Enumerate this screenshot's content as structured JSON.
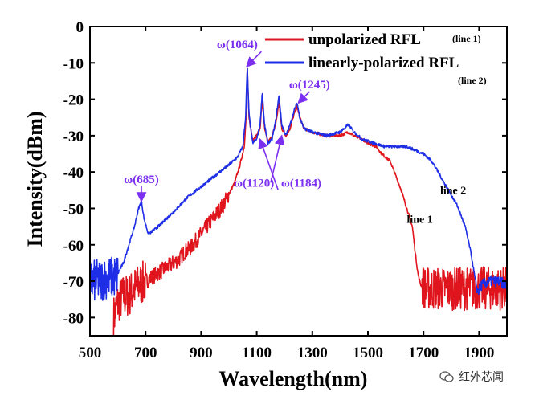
{
  "chart_data": {
    "type": "line",
    "xlabel": "Wavelength(nm)",
    "ylabel": "Intensity(dBm)",
    "xlim": [
      500,
      2000
    ],
    "ylim": [
      -85,
      0
    ],
    "xticks": [
      "500",
      "700",
      "900",
      "1100",
      "1300",
      "1500",
      "1700",
      "1900"
    ],
    "yticks": [
      "0",
      "-10",
      "-20",
      "-30",
      "-40",
      "-50",
      "-60",
      "-70",
      "-80"
    ],
    "legend_position": "top-right",
    "series": [
      {
        "name": "unpolarized RFL",
        "tag": "(line 1)",
        "color": "#e0141c",
        "points": [
          [
            585,
            -80
          ],
          [
            600,
            -76
          ],
          [
            620,
            -74
          ],
          [
            640,
            -74
          ],
          [
            660,
            -72
          ],
          [
            680,
            -71
          ],
          [
            700,
            -70
          ],
          [
            720,
            -69
          ],
          [
            740,
            -68
          ],
          [
            760,
            -67
          ],
          [
            780,
            -66
          ],
          [
            800,
            -65
          ],
          [
            820,
            -64
          ],
          [
            840,
            -62
          ],
          [
            860,
            -61
          ],
          [
            880,
            -59
          ],
          [
            900,
            -57
          ],
          [
            920,
            -55
          ],
          [
            940,
            -53
          ],
          [
            960,
            -51
          ],
          [
            980,
            -49
          ],
          [
            1000,
            -46
          ],
          [
            1020,
            -43
          ],
          [
            1040,
            -38
          ],
          [
            1055,
            -33
          ],
          [
            1062,
            -25
          ],
          [
            1066,
            -11
          ],
          [
            1072,
            -25
          ],
          [
            1085,
            -31
          ],
          [
            1100,
            -30
          ],
          [
            1112,
            -28
          ],
          [
            1120,
            -20
          ],
          [
            1128,
            -28
          ],
          [
            1140,
            -32
          ],
          [
            1155,
            -30
          ],
          [
            1168,
            -27
          ],
          [
            1180,
            -21
          ],
          [
            1190,
            -28
          ],
          [
            1205,
            -30
          ],
          [
            1220,
            -28
          ],
          [
            1235,
            -24
          ],
          [
            1245,
            -22
          ],
          [
            1255,
            -25
          ],
          [
            1270,
            -28
          ],
          [
            1300,
            -29
          ],
          [
            1350,
            -30
          ],
          [
            1400,
            -30
          ],
          [
            1430,
            -29
          ],
          [
            1450,
            -30
          ],
          [
            1480,
            -31
          ],
          [
            1500,
            -32
          ],
          [
            1530,
            -33
          ],
          [
            1550,
            -35
          ],
          [
            1580,
            -37
          ],
          [
            1600,
            -41
          ],
          [
            1620,
            -45
          ],
          [
            1640,
            -50
          ],
          [
            1660,
            -55
          ],
          [
            1670,
            -62
          ],
          [
            1680,
            -68
          ],
          [
            1690,
            -71
          ],
          [
            1710,
            -72
          ],
          [
            1760,
            -72
          ],
          [
            1820,
            -72
          ],
          [
            1880,
            -72
          ],
          [
            1950,
            -72
          ],
          [
            2000,
            -72
          ]
        ]
      },
      {
        "name": "linearly-polarized RFL",
        "tag": "(line 2)",
        "color": "#1e2ee6",
        "points": [
          [
            500,
            -70
          ],
          [
            530,
            -70
          ],
          [
            560,
            -69
          ],
          [
            585,
            -69
          ],
          [
            600,
            -68
          ],
          [
            620,
            -65
          ],
          [
            640,
            -60
          ],
          [
            660,
            -55
          ],
          [
            675,
            -50
          ],
          [
            685,
            -48
          ],
          [
            695,
            -53
          ],
          [
            710,
            -57
          ],
          [
            730,
            -56
          ],
          [
            760,
            -54
          ],
          [
            800,
            -51
          ],
          [
            850,
            -47
          ],
          [
            900,
            -44
          ],
          [
            950,
            -41
          ],
          [
            1000,
            -38
          ],
          [
            1030,
            -36
          ],
          [
            1050,
            -33
          ],
          [
            1060,
            -25
          ],
          [
            1066,
            -11
          ],
          [
            1072,
            -24
          ],
          [
            1085,
            -32
          ],
          [
            1100,
            -31
          ],
          [
            1112,
            -27
          ],
          [
            1120,
            -18
          ],
          [
            1128,
            -27
          ],
          [
            1140,
            -32
          ],
          [
            1155,
            -31
          ],
          [
            1168,
            -26
          ],
          [
            1180,
            -19
          ],
          [
            1190,
            -27
          ],
          [
            1205,
            -30
          ],
          [
            1220,
            -27
          ],
          [
            1235,
            -23
          ],
          [
            1245,
            -21
          ],
          [
            1255,
            -25
          ],
          [
            1270,
            -28
          ],
          [
            1300,
            -29
          ],
          [
            1350,
            -30
          ],
          [
            1400,
            -29
          ],
          [
            1430,
            -27
          ],
          [
            1450,
            -29
          ],
          [
            1480,
            -31
          ],
          [
            1520,
            -32
          ],
          [
            1560,
            -33
          ],
          [
            1600,
            -33
          ],
          [
            1640,
            -33
          ],
          [
            1670,
            -34
          ],
          [
            1700,
            -35
          ],
          [
            1730,
            -37
          ],
          [
            1760,
            -41
          ],
          [
            1790,
            -45
          ],
          [
            1820,
            -49
          ],
          [
            1850,
            -55
          ],
          [
            1870,
            -62
          ],
          [
            1885,
            -69
          ],
          [
            1895,
            -73
          ],
          [
            1910,
            -71
          ],
          [
            1940,
            -70
          ],
          [
            1970,
            -70
          ],
          [
            2000,
            -71
          ]
        ]
      }
    ],
    "annotations": [
      {
        "text": "ω(685)",
        "color": "#7b2ff0",
        "x": 685,
        "y": -43,
        "arrow_to": [
          685,
          -48
        ]
      },
      {
        "text": "ω(1064)",
        "color": "#7b2ff0",
        "x": 1030,
        "y": -6,
        "arrow_to": [
          1064,
          -11
        ]
      },
      {
        "text": "ω(1120)",
        "color": "#7b2ff0",
        "x": 1090,
        "y": -44,
        "arrow_to": [
          1112,
          -31
        ]
      },
      {
        "text": "ω(1184)",
        "color": "#7b2ff0",
        "x": 1260,
        "y": -44,
        "arrow_to": [
          1190,
          -30
        ]
      },
      {
        "text": "ω(1245)",
        "color": "#7b2ff0",
        "x": 1290,
        "y": -17,
        "arrow_to": [
          1250,
          -21
        ]
      }
    ],
    "line_labels": [
      {
        "text": "line 1",
        "x": 1640,
        "y": -54
      },
      {
        "text": "line 2",
        "x": 1760,
        "y": -46
      }
    ]
  },
  "watermark": {
    "text": "红外芯闻"
  }
}
